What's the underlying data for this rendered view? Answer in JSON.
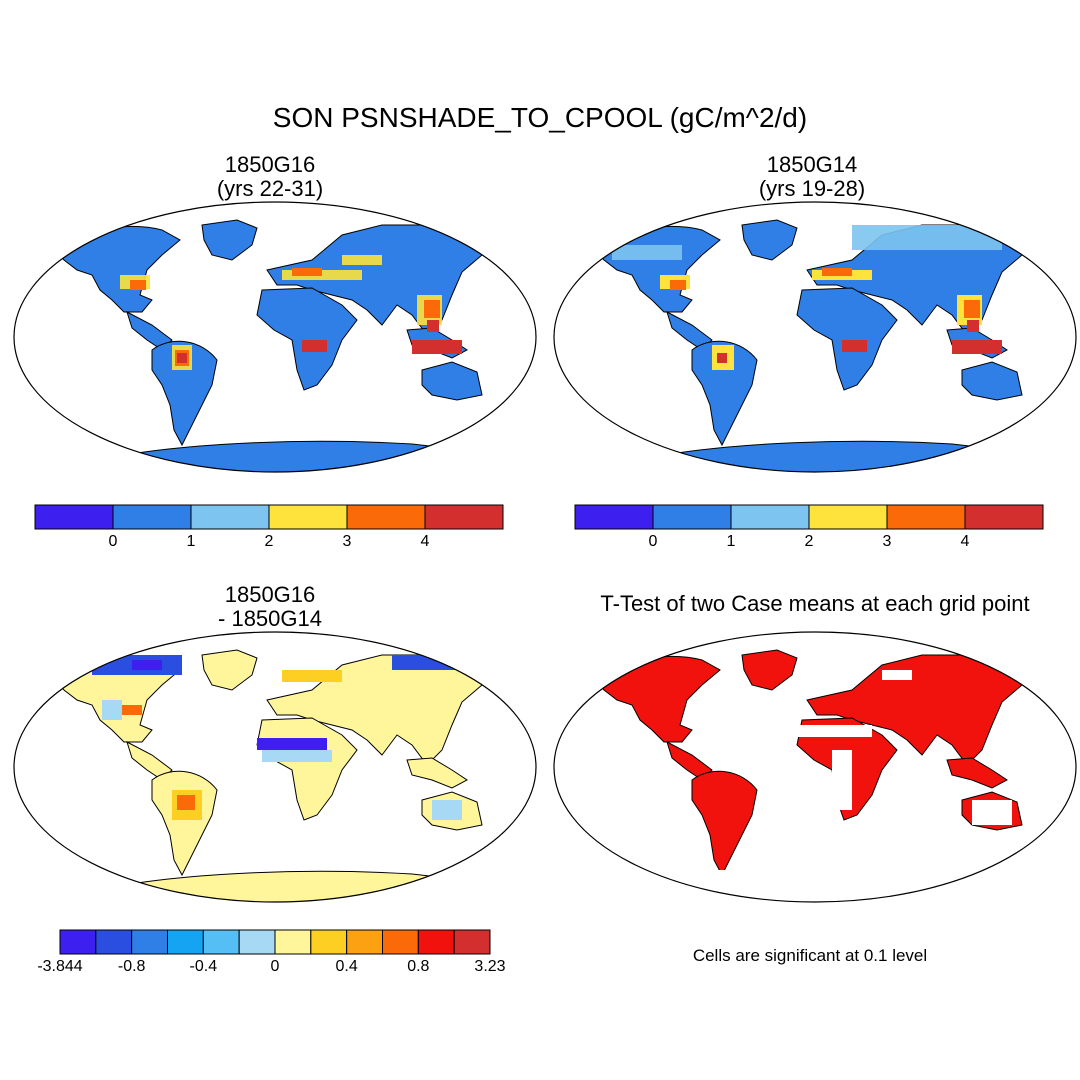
{
  "figure_title": "SON PSNSHADE_TO_CPOOL (gC/m^2/d)",
  "panels": [
    {
      "line1": "1850G16",
      "line2": "(yrs 22-31)"
    },
    {
      "line1": "1850G14",
      "line2": "(yrs 19-28)"
    },
    {
      "line1": "1850G16",
      "line2": "- 1850G14"
    },
    {
      "line1": "T-Test of two Case means at each grid point",
      "line2": ""
    }
  ],
  "colorbar_main": {
    "colors": [
      "#3d1ff0",
      "#2f7fe6",
      "#7dc4f0",
      "#fde33c",
      "#fb6a08",
      "#d42f2f"
    ],
    "labels": [
      "0",
      "1",
      "2",
      "3",
      "4"
    ]
  },
  "colorbar_diff": {
    "colors": [
      "#3d1ff0",
      "#2a4fe0",
      "#2f7fe6",
      "#15a4f2",
      "#55bff5",
      "#a8d9f4",
      "#fff59a",
      "#fdcf22",
      "#fba112",
      "#fb6a08",
      "#f2120d",
      "#d42f2f"
    ],
    "labels": [
      "-3.844",
      "-0.8",
      "-0.4",
      "0",
      "0.4",
      "0.8",
      "3.23"
    ]
  },
  "significance_note": "Cells are significant at 0.1 level"
}
